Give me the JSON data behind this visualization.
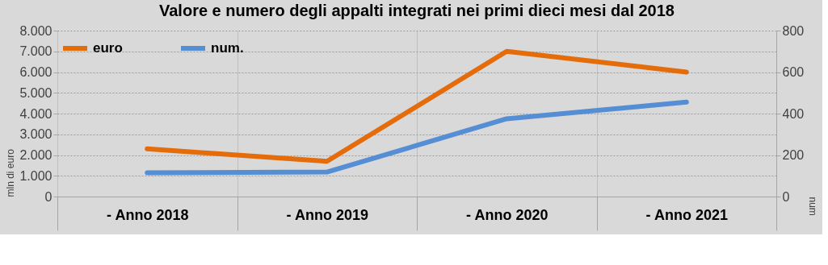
{
  "chart_data": {
    "type": "line",
    "title": "Valore e numero degli appalti integrati nei primi dieci mesi dal 2018",
    "categories": [
      "- Anno 2018",
      "- Anno 2019",
      "- Anno 2020",
      "- Anno 2021"
    ],
    "series": [
      {
        "name": "euro",
        "color": "#e46c0a",
        "values": [
          2300,
          1700,
          7000,
          6000
        ]
      },
      {
        "name": "num.",
        "color": "#558ed5",
        "axis": "y2",
        "values": [
          115,
          118,
          375,
          455
        ]
      }
    ],
    "ylabel": "mln di euro",
    "y2label": "num",
    "ylim": [
      0,
      8000
    ],
    "yticks": [
      {
        "value": 0,
        "label": "0"
      },
      {
        "value": 1000,
        "label": "1.000"
      },
      {
        "value": 2000,
        "label": "2.000"
      },
      {
        "value": 3000,
        "label": "3.000"
      },
      {
        "value": 4000,
        "label": "4.000"
      },
      {
        "value": 5000,
        "label": "5.000"
      },
      {
        "value": 6000,
        "label": "6.000"
      },
      {
        "value": 7000,
        "label": "7.000"
      },
      {
        "value": 8000,
        "label": "8.000"
      }
    ],
    "y2lim": [
      0,
      800
    ],
    "y2ticks": [
      0,
      200,
      400,
      600,
      800
    ],
    "grid": true,
    "legend": "top left",
    "marker": "none",
    "line_style": "solid"
  }
}
